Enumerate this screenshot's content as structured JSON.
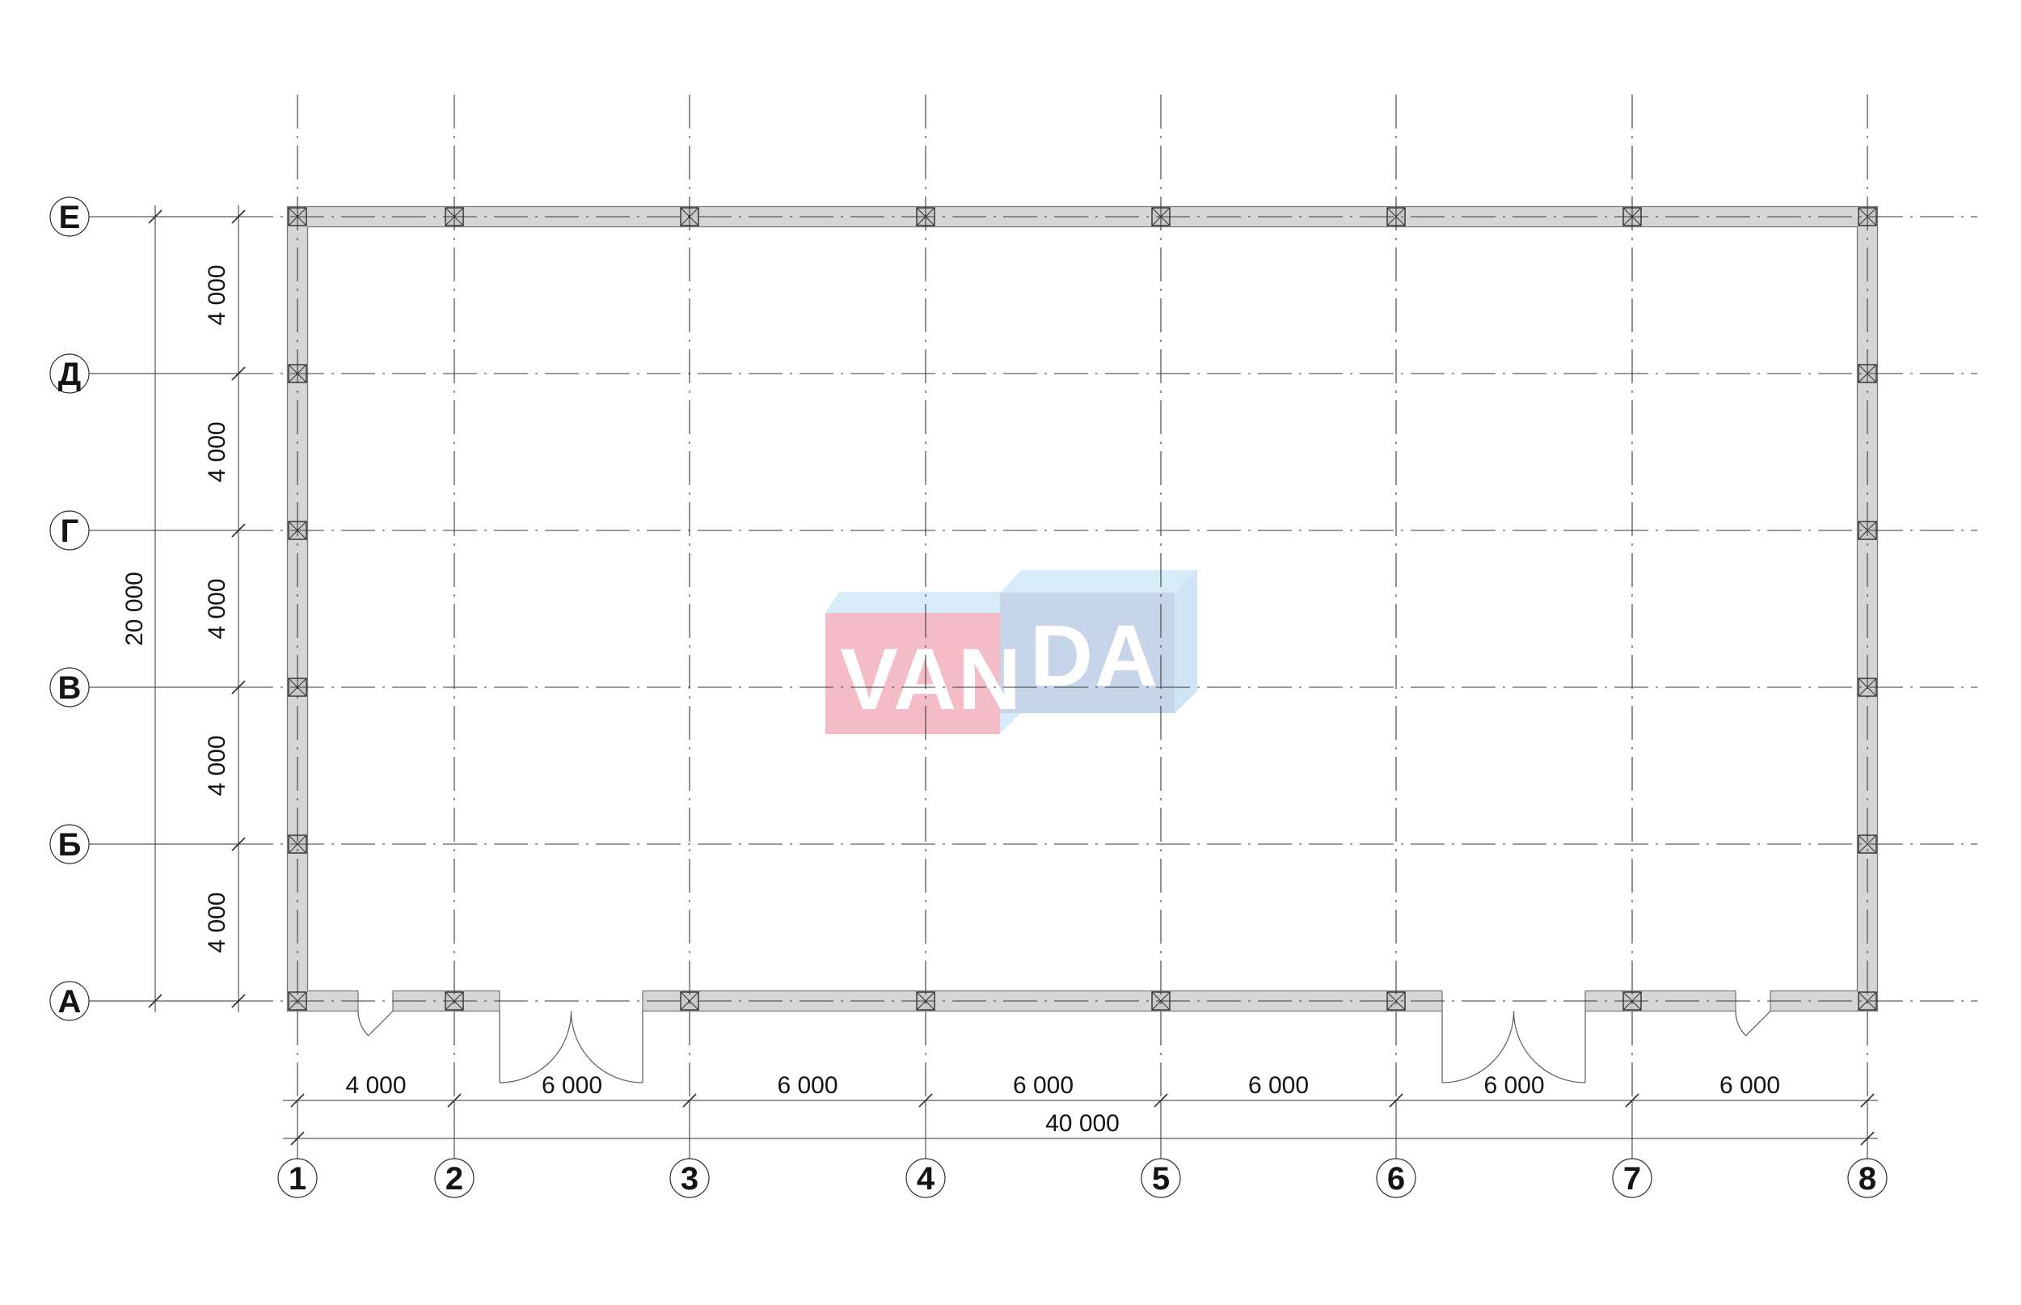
{
  "watermark": {
    "text": "VANDA",
    "left_part": "VAN",
    "right_part": "DA",
    "colors": {
      "red_face": "#f3bcc6",
      "blue_face": "#c6d5e9",
      "light_top": "#d7ecf9",
      "side_face": "#cfe4f4",
      "letters": "#ffffff"
    }
  },
  "axes": {
    "row_labels": [
      "Е",
      "Д",
      "Г",
      "В",
      "Б",
      "А"
    ],
    "col_labels": [
      "1",
      "2",
      "3",
      "4",
      "5",
      "6",
      "7",
      "8"
    ]
  },
  "dimensions": {
    "left_segments": [
      "4 000",
      "4 000",
      "4 000",
      "4 000",
      "4 000"
    ],
    "left_total": "20 000",
    "bottom_segments": [
      "4 000",
      "6 000",
      "6 000",
      "6 000",
      "6 000",
      "6 000",
      "6 000"
    ],
    "bottom_total": "40 000"
  },
  "colors": {
    "background": "#ffffff",
    "wall_fill": "#d6d6d6",
    "wall_stroke": "#7a7a7a",
    "column_fill": "#c9c9c9",
    "column_stroke": "#2f2f2f",
    "grid_line": "#3a3a3a",
    "dimension_line": "#2f2f2f",
    "text": "#141414",
    "door_line": "#5a5a5a"
  }
}
